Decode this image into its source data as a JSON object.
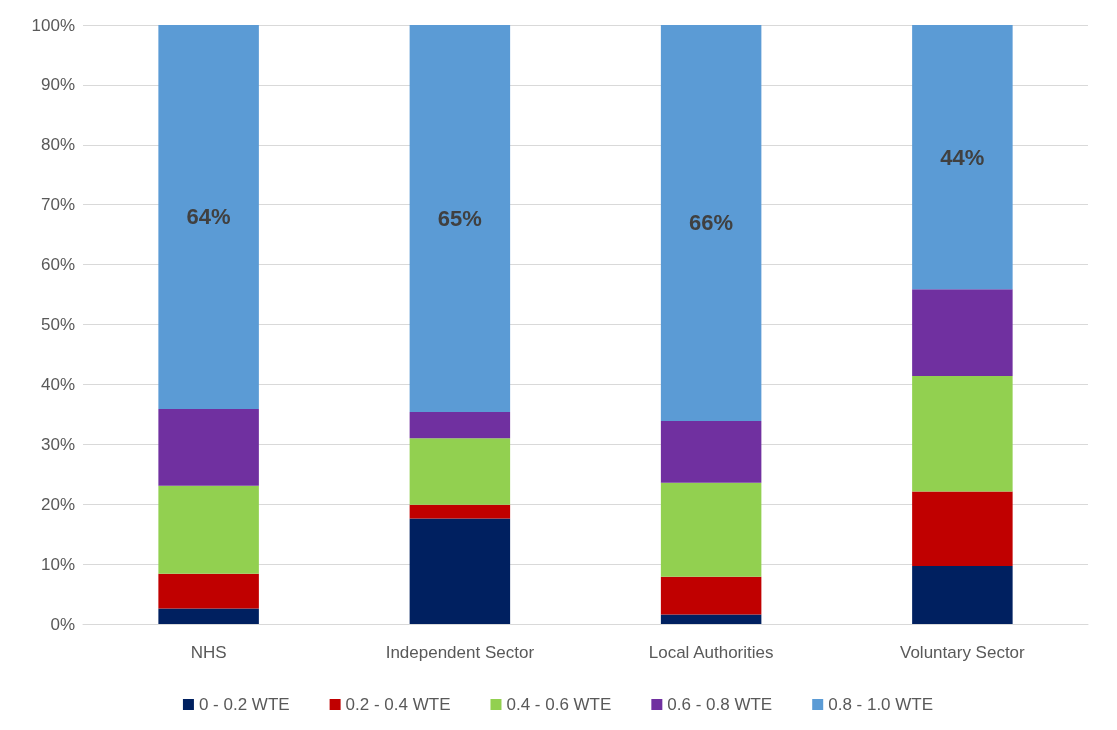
{
  "chart_data": {
    "type": "bar",
    "stacked": true,
    "categories": [
      "NHS",
      "Independent Sector",
      "Local Authorities",
      "Voluntary Sector"
    ],
    "series": [
      {
        "name": "0 - 0.2 WTE",
        "color": "#002060",
        "values": [
          2.6,
          17.6,
          1.6,
          9.7
        ]
      },
      {
        "name": "0.2 - 0.4 WTE",
        "color": "#c00000",
        "values": [
          5.8,
          2.3,
          6.3,
          12.4
        ]
      },
      {
        "name": "0.4 - 0.6 WTE",
        "color": "#92d050",
        "values": [
          14.7,
          11.1,
          15.7,
          19.3
        ]
      },
      {
        "name": "0.6 - 0.8 WTE",
        "color": "#7030a0",
        "values": [
          12.8,
          4.4,
          10.3,
          14.5
        ]
      },
      {
        "name": "0.8 - 1.0 WTE",
        "color": "#5b9bd5",
        "values": [
          64.1,
          64.6,
          66.1,
          44.1
        ],
        "value_labels": [
          "64%",
          "65%",
          "66%",
          "44%"
        ]
      }
    ],
    "ylim": [
      0,
      100
    ],
    "yticks": [
      {
        "value": 0,
        "label": "0%"
      },
      {
        "value": 10,
        "label": "10%"
      },
      {
        "value": 20,
        "label": "20%"
      },
      {
        "value": 30,
        "label": "30%"
      },
      {
        "value": 40,
        "label": "40%"
      },
      {
        "value": 50,
        "label": "50%"
      },
      {
        "value": 60,
        "label": "60%"
      },
      {
        "value": 70,
        "label": "70%"
      },
      {
        "value": 80,
        "label": "80%"
      },
      {
        "value": 90,
        "label": "90%"
      },
      {
        "value": 100,
        "label": "100%"
      }
    ],
    "grid": "y",
    "legend": "bottom"
  }
}
